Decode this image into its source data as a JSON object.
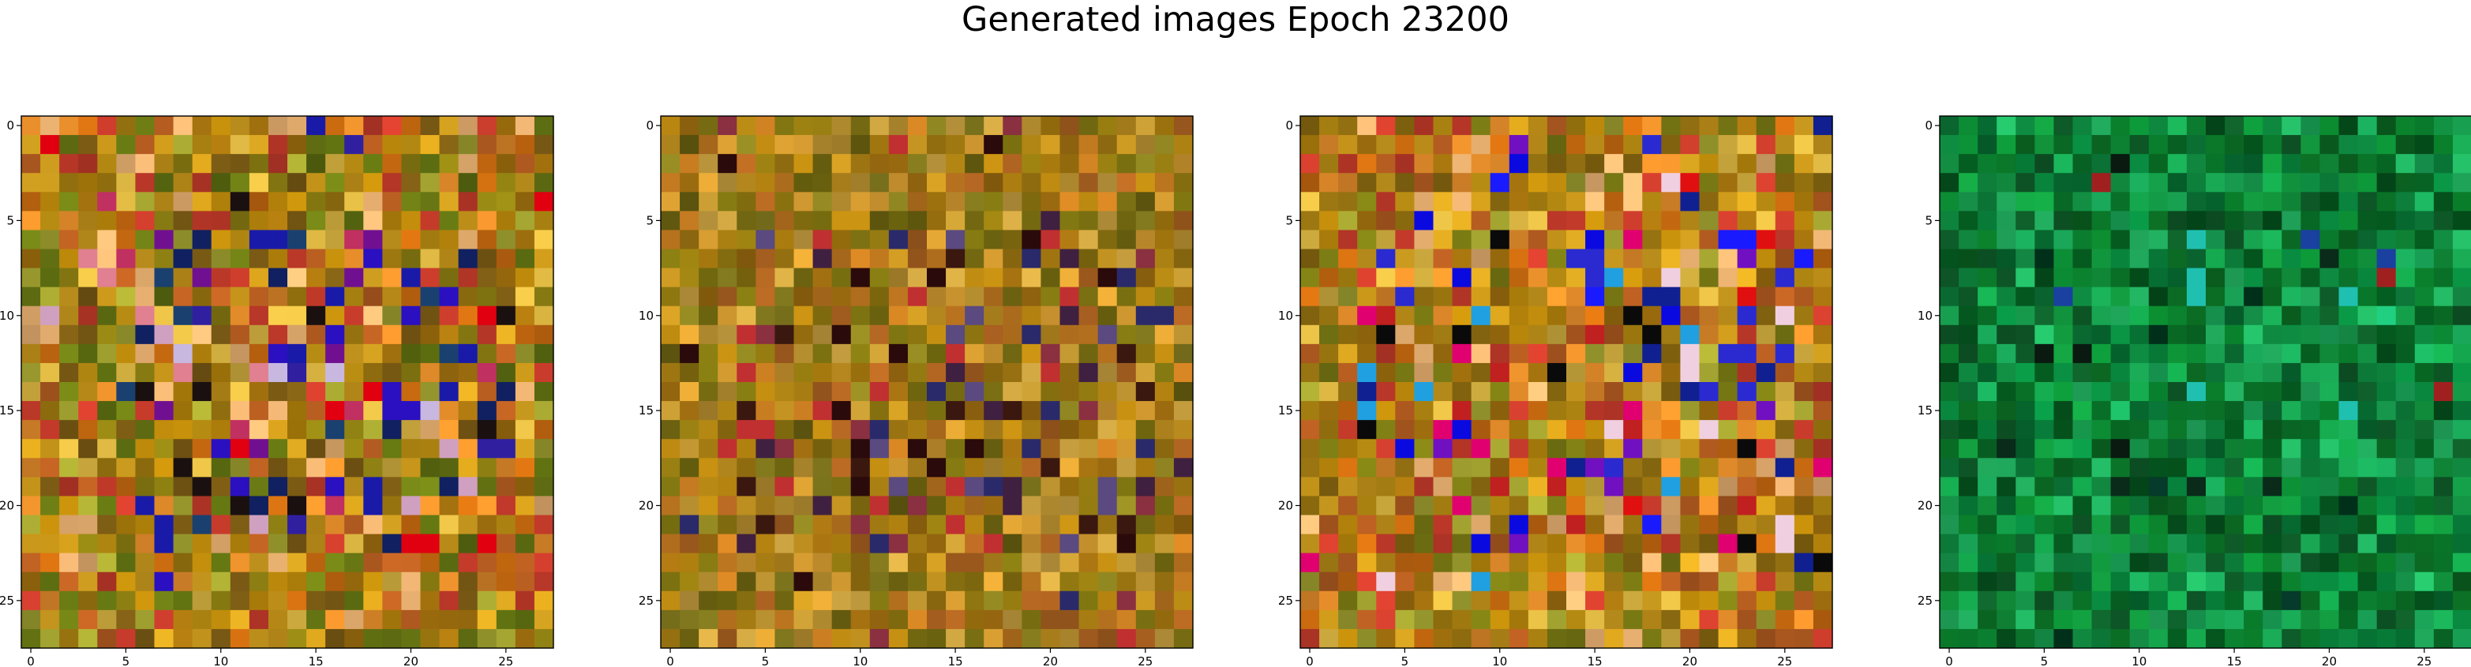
{
  "title": "Generated images Epoch 23200",
  "chart_data": [
    {
      "type": "heatmap",
      "palette": "warm",
      "seed": 11,
      "grid": [
        28,
        28
      ],
      "xticks": [
        0,
        5,
        10,
        15,
        20,
        25
      ],
      "yticks": [
        0,
        5,
        10,
        15,
        20,
        25
      ],
      "xlim": [
        -0.5,
        27.5
      ],
      "ylim": [
        27.5,
        -0.5
      ]
    },
    {
      "type": "heatmap",
      "palette": "warm-muted",
      "seed": 23,
      "grid": [
        28,
        28
      ],
      "xticks": [
        0,
        5,
        10,
        15,
        20,
        25
      ],
      "yticks": [
        0,
        5,
        10,
        15,
        20,
        25
      ],
      "xlim": [
        -0.5,
        27.5
      ],
      "ylim": [
        27.5,
        -0.5
      ]
    },
    {
      "type": "heatmap",
      "palette": "warm-vivid",
      "seed": 37,
      "grid": [
        28,
        28
      ],
      "xticks": [
        0,
        5,
        10,
        15,
        20,
        25
      ],
      "yticks": [
        0,
        5,
        10,
        15,
        20,
        25
      ],
      "xlim": [
        -0.5,
        27.5
      ],
      "ylim": [
        27.5,
        -0.5
      ]
    },
    {
      "type": "heatmap",
      "palette": "green",
      "seed": 53,
      "grid": [
        28,
        28
      ],
      "xticks": [
        0,
        5,
        10,
        15,
        20,
        25
      ],
      "yticks": [
        0,
        5,
        10,
        15,
        20,
        25
      ],
      "xlim": [
        -0.5,
        27.5
      ],
      "ylim": [
        27.5,
        -0.5
      ]
    }
  ]
}
